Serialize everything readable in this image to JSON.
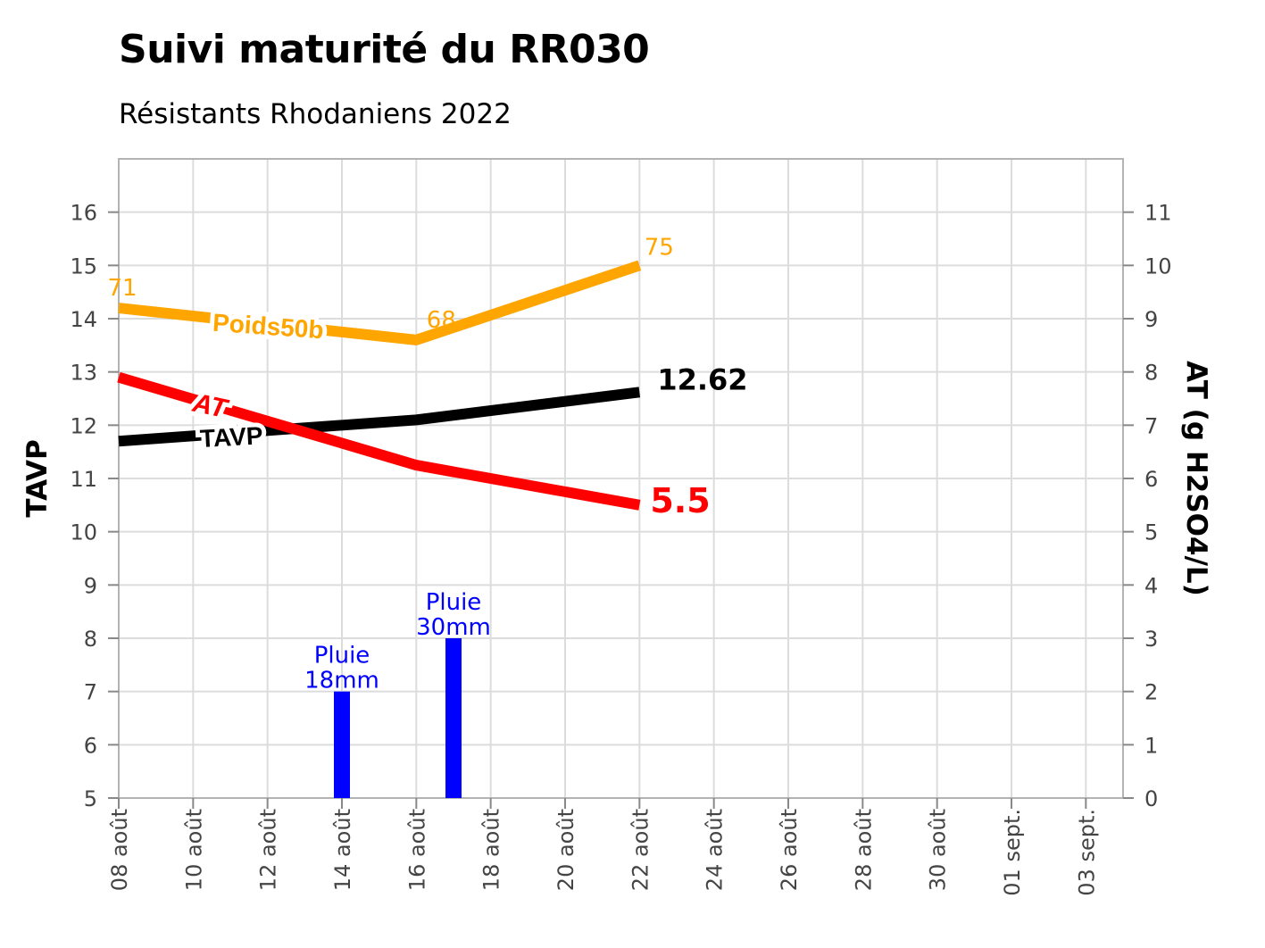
{
  "title": "Suivi maturité du RR030",
  "subtitle": "Résistants Rhodaniens 2022",
  "chart_data": {
    "type": "line",
    "x_unit": "date",
    "xlim": [
      "2022-08-08",
      "2022-09-04"
    ],
    "x_ticks": [
      {
        "date": "2022-08-08",
        "label": "08 août"
      },
      {
        "date": "2022-08-10",
        "label": "10 août"
      },
      {
        "date": "2022-08-12",
        "label": "12 août"
      },
      {
        "date": "2022-08-14",
        "label": "14 août"
      },
      {
        "date": "2022-08-16",
        "label": "16 août"
      },
      {
        "date": "2022-08-18",
        "label": "18 août"
      },
      {
        "date": "2022-08-20",
        "label": "20 août"
      },
      {
        "date": "2022-08-22",
        "label": "22 août"
      },
      {
        "date": "2022-08-24",
        "label": "24 août"
      },
      {
        "date": "2022-08-26",
        "label": "26 août"
      },
      {
        "date": "2022-08-28",
        "label": "28 août"
      },
      {
        "date": "2022-08-30",
        "label": "30 août"
      },
      {
        "date": "2022-09-01",
        "label": "01 sept."
      },
      {
        "date": "2022-09-03",
        "label": "03 sept."
      }
    ],
    "y_left": {
      "label": "TAVP",
      "ylim": [
        5,
        17
      ],
      "ticks": [
        5,
        6,
        7,
        8,
        9,
        10,
        11,
        12,
        13,
        14,
        15,
        16
      ]
    },
    "y_right": {
      "label": "AT (g H2SO4/L)",
      "ylim": [
        0,
        12
      ],
      "ticks": [
        0,
        1,
        2,
        3,
        4,
        5,
        6,
        7,
        8,
        9,
        10,
        11
      ]
    },
    "grid": true,
    "series": [
      {
        "name": "Poids50b",
        "axis": "left",
        "color": "#FFA500",
        "points": [
          {
            "x": "2022-08-08",
            "y": 14.2
          },
          {
            "x": "2022-08-16",
            "y": 13.6
          },
          {
            "x": "2022-08-22",
            "y": 15.0
          }
        ],
        "point_labels": [
          "71",
          "68",
          "75"
        ]
      },
      {
        "name": "TAVP",
        "axis": "left",
        "color": "#000000",
        "points": [
          {
            "x": "2022-08-08",
            "y": 11.7
          },
          {
            "x": "2022-08-16",
            "y": 12.1
          },
          {
            "x": "2022-08-22",
            "y": 12.62
          }
        ],
        "end_label": "12.62"
      },
      {
        "name": "AT",
        "axis": "right",
        "color": "#FF0000",
        "points": [
          {
            "x": "2022-08-08",
            "y": 7.9
          },
          {
            "x": "2022-08-16",
            "y": 6.25
          },
          {
            "x": "2022-08-22",
            "y": 5.5
          }
        ],
        "end_label": "5.5"
      }
    ],
    "rain_bars": {
      "axis": "left",
      "color": "#0000FF",
      "bars": [
        {
          "x": "2022-08-14",
          "y": 7,
          "label_line1": "Pluie",
          "label_line2": "18mm"
        },
        {
          "x": "2022-08-17",
          "y": 8,
          "label_line1": "Pluie",
          "label_line2": "30mm"
        }
      ]
    }
  }
}
